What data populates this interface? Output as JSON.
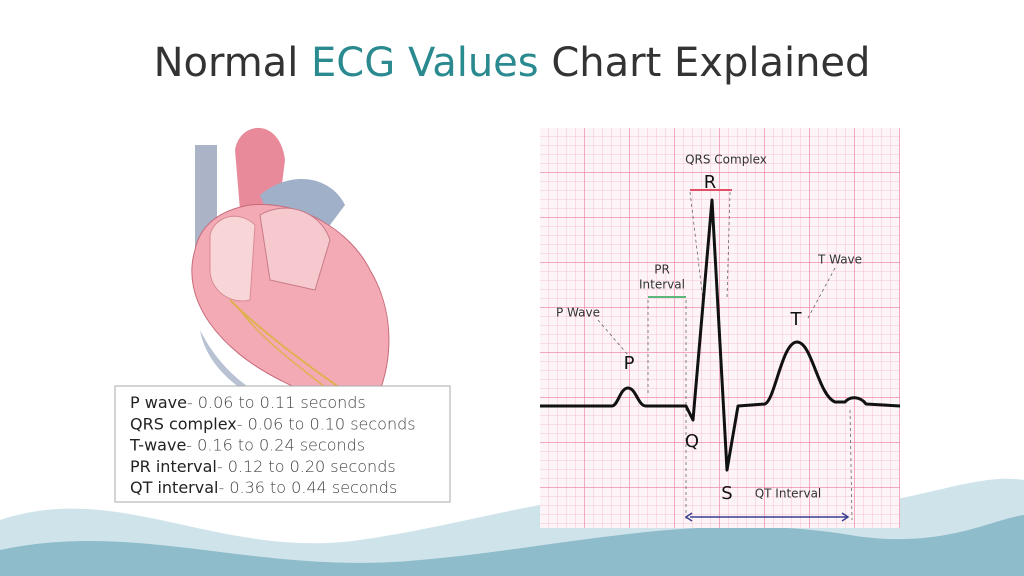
{
  "title": {
    "prefix": "Normal",
    "highlight": "ECG Values",
    "suffix": "Chart Explained"
  },
  "values_box": {
    "items": [
      {
        "name": "P wave",
        "range": "- 0.06 to 0.11 seconds"
      },
      {
        "name": "QRS complex",
        "range": "-  0.06 to 0.10 seconds"
      },
      {
        "name": "T-wave",
        "range": "- 0.16 to 0.24 seconds"
      },
      {
        "name": "PR interval",
        "range": "- 0.12 to 0.20 seconds"
      },
      {
        "name": "QT interval",
        "range": "- 0.36 to 0.44 seconds"
      }
    ]
  },
  "ecg": {
    "qrs_complex": "QRS Complex",
    "r": "R",
    "pr_interval": [
      "PR",
      "Interval"
    ],
    "t_wave": "T Wave",
    "p_wave": "P Wave",
    "t": "T",
    "p": "P",
    "q": "Q",
    "s": "S",
    "qt_interval": "QT Interval"
  }
}
